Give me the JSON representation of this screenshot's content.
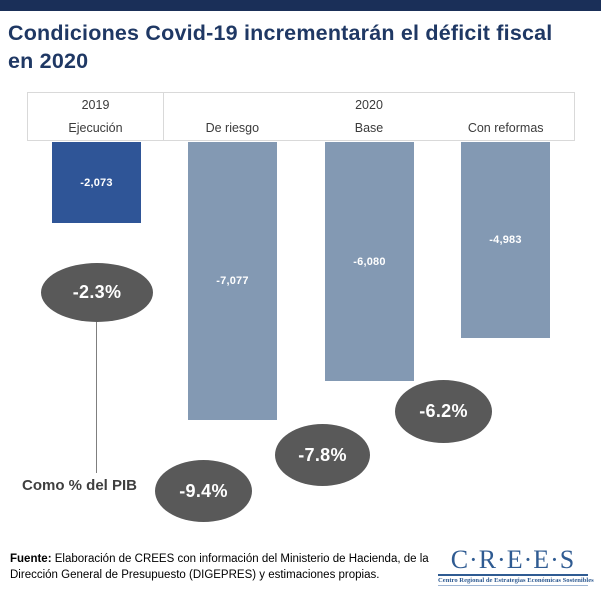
{
  "page": {
    "title": "Condiciones Covid-19 incrementarán el déficit fiscal en 2020"
  },
  "chart_data": {
    "type": "bar",
    "title": "Condiciones Covid-19 incrementarán el déficit fiscal en 2020",
    "orientation": "vertical-negative-downward",
    "group_headers": [
      {
        "label": "2019",
        "span": 1
      },
      {
        "label": "2020",
        "span": 3
      }
    ],
    "categories": [
      "Ejecución",
      "De riesgo",
      "Base",
      "Con reformas"
    ],
    "values": [
      -2073,
      -7077,
      -6080,
      -4983
    ],
    "value_labels": [
      "-2,073",
      "-7,077",
      "-6,080",
      "-4,983"
    ],
    "pct_of_gdp_labels": [
      "-2.3%",
      "-9.4%",
      "-7.8%",
      "-6.2%"
    ],
    "pct_note": "Como % del PIB",
    "bar_colors": [
      "#2f5597",
      "#8399b3",
      "#8399b3",
      "#8399b3"
    ],
    "bubble_color": "#595959",
    "ylim": [
      -7500,
      0
    ],
    "grid": false,
    "legend": "none"
  },
  "footer": {
    "source_label": "Fuente:",
    "source_text": " Elaboración de CREES con información del Ministerio de Hacienda, de la Dirección General de Presupuesto (DIGEPRES) y estimaciones propias."
  },
  "logo": {
    "name": "C·R·E·E·S",
    "tagline": "Centro Regional de Estrategias Económicas Sostenibles"
  },
  "colors": {
    "top_bar": "#1a2f58",
    "title": "#1f3864",
    "header_border": "#d9d9d9",
    "dark_bar": "#2f5597",
    "light_bar": "#8399b3",
    "bubble": "#595959",
    "logo_blue": "#2f5b92"
  }
}
